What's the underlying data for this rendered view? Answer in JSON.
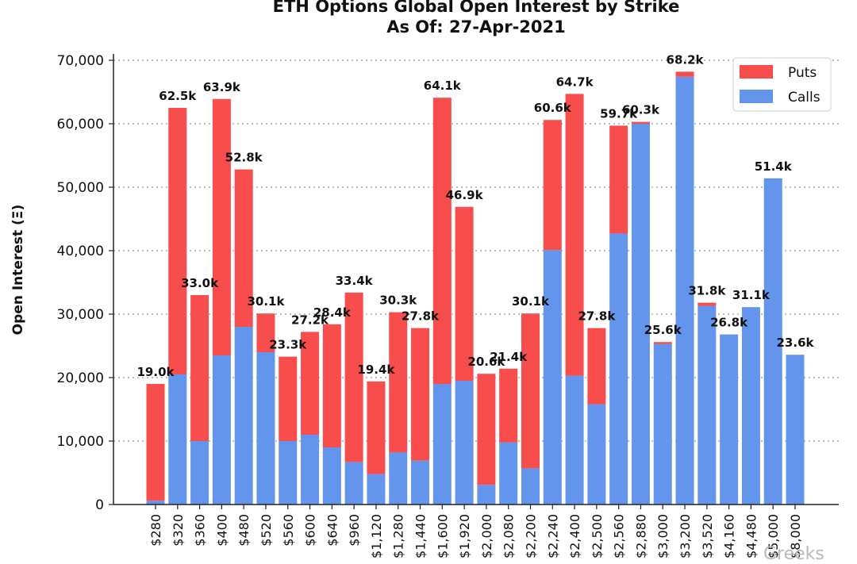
{
  "chart_data": {
    "type": "bar",
    "stacked": true,
    "title": "ETH Options Global Open Interest by Strike",
    "subtitle": "As Of: 27-Apr-2021",
    "xlabel": "",
    "ylabel": "Open Interest (Ξ)",
    "ylim": [
      0,
      70000
    ],
    "yticks": [
      0,
      10000,
      20000,
      30000,
      40000,
      50000,
      60000,
      70000
    ],
    "ytick_labels": [
      "0",
      "10,000",
      "20,000",
      "30,000",
      "40,000",
      "50,000",
      "60,000",
      "70,000"
    ],
    "grid": "horizontal-dotted",
    "legend_position": "top-right",
    "categories": [
      "$280",
      "$320",
      "$360",
      "$400",
      "$480",
      "$520",
      "$560",
      "$600",
      "$640",
      "$960",
      "$1,120",
      "$1,280",
      "$1,440",
      "$1,600",
      "$1,920",
      "$2,000",
      "$2,080",
      "$2,200",
      "$2,240",
      "$2,400",
      "$2,500",
      "$2,560",
      "$2,880",
      "$3,000",
      "$3,200",
      "$3,520",
      "$4,160",
      "$4,480",
      "$5,000",
      "$8,000"
    ],
    "series": [
      {
        "name": "Calls",
        "color": "#6495ed",
        "values": [
          600,
          20500,
          10000,
          23500,
          28000,
          24000,
          10000,
          11000,
          9000,
          6700,
          4800,
          8200,
          6900,
          19000,
          19500,
          3100,
          9800,
          5700,
          40100,
          20300,
          15800,
          42700,
          60000,
          25300,
          67400,
          31300,
          26800,
          31100,
          51400,
          23600
        ]
      },
      {
        "name": "Puts",
        "color": "#f74d4d",
        "values": [
          18400,
          42000,
          23000,
          40400,
          24800,
          6100,
          13300,
          16200,
          19400,
          26700,
          14600,
          22100,
          20900,
          45100,
          27400,
          17500,
          11600,
          24400,
          20500,
          44400,
          12000,
          17000,
          300,
          300,
          800,
          500,
          0,
          0,
          0,
          0
        ]
      }
    ],
    "total_labels": [
      "19.0k",
      "62.5k",
      "33.0k",
      "63.9k",
      "52.8k",
      "30.1k",
      "23.3k",
      "27.2k",
      "28.4k",
      "33.4k",
      "19.4k",
      "30.3k",
      "27.8k",
      "64.1k",
      "46.9k",
      "20.6k",
      "21.4k",
      "30.1k",
      "60.6k",
      "64.7k",
      "27.8k",
      "59.7k",
      "60.3k",
      "25.6k",
      "68.2k",
      "31.8k",
      "26.8k",
      "31.1k",
      "51.4k",
      "23.6k"
    ]
  },
  "watermark": "Greeks"
}
